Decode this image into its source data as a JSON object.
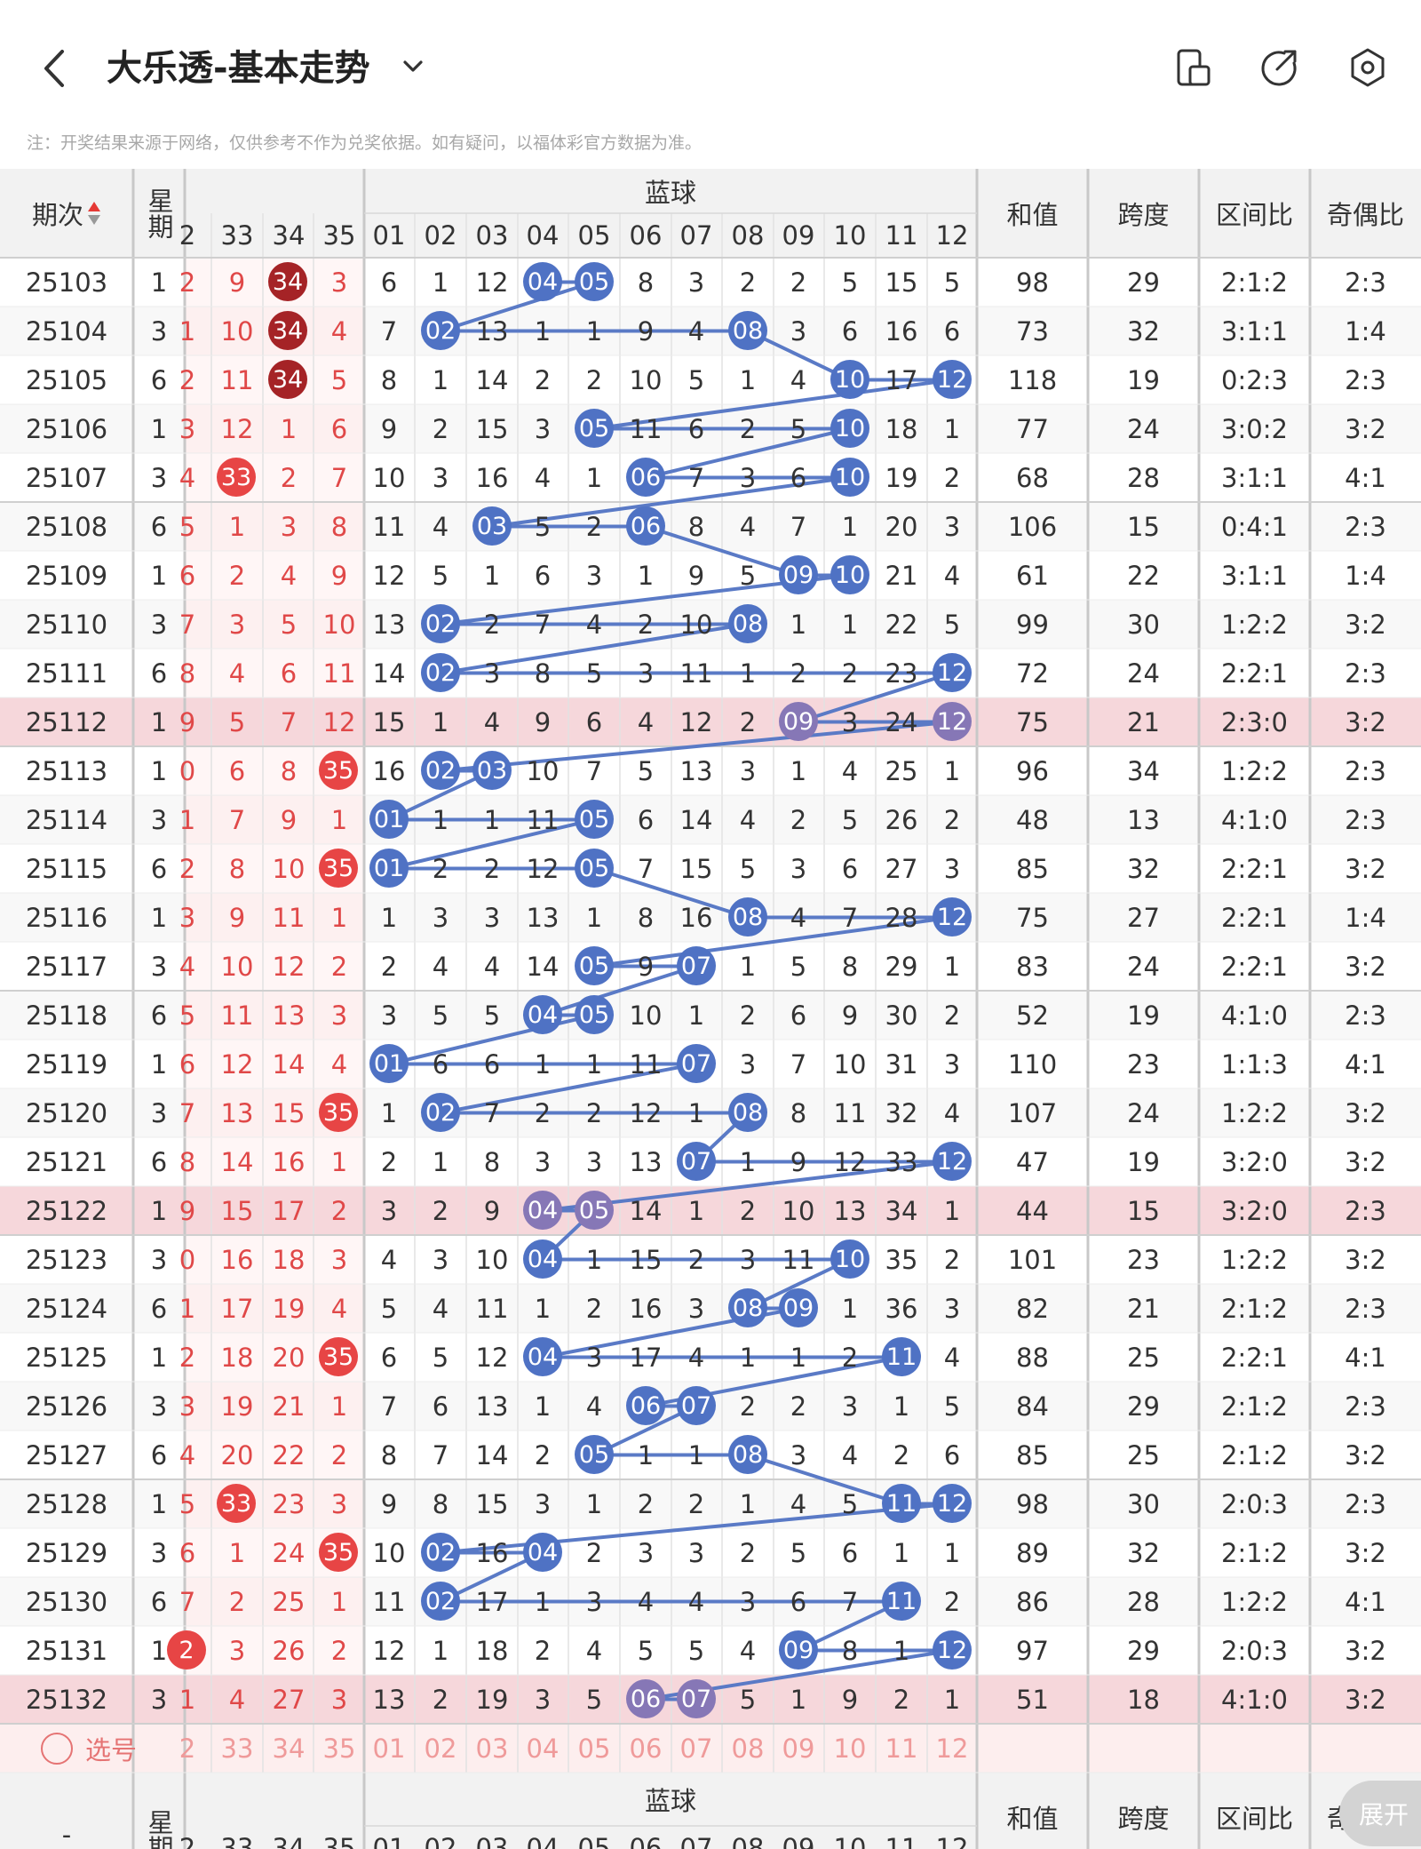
{
  "header": {
    "title": "大乐透-基本走势"
  },
  "icons": {
    "back": "back-icon",
    "dropdown": "chevron-down-icon",
    "layout": "layout-icon",
    "share": "share-icon",
    "settings": "settings-icon"
  },
  "notice": "注：开奖结果来源于网络，仅供参考不作为兑奖依据。如有疑问，以福体彩官方数据为准。",
  "table": {
    "col_period": "期次",
    "col_week": "星期",
    "blue_group": "蓝球",
    "col_sum": "和值",
    "col_span": "跨度",
    "col_zone": "区间比",
    "col_oddeven": "奇偶比",
    "front_headers": [
      "2",
      "33",
      "34",
      "35"
    ],
    "blue_headers": [
      "01",
      "02",
      "03",
      "04",
      "05",
      "06",
      "07",
      "08",
      "09",
      "10",
      "11",
      "12"
    ],
    "rows": [
      {
        "p": "25103",
        "w": "1",
        "f": [
          "2",
          "9",
          "34",
          "3"
        ],
        "fs": [
          0,
          0,
          2,
          0
        ],
        "b": [
          "6",
          "1",
          "12",
          "04",
          "05",
          "8",
          "3",
          "2",
          "2",
          "5",
          "15",
          "5"
        ],
        "hit": [
          3,
          4
        ],
        "sum": "98",
        "span": "29",
        "zone": "2:1:2",
        "oe": "2:3",
        "hl": false
      },
      {
        "p": "25104",
        "w": "3",
        "f": [
          "1",
          "10",
          "34",
          "4"
        ],
        "fs": [
          0,
          0,
          2,
          0
        ],
        "b": [
          "7",
          "02",
          "13",
          "1",
          "1",
          "9",
          "4",
          "08",
          "3",
          "6",
          "16",
          "6"
        ],
        "hit": [
          1,
          7
        ],
        "sum": "73",
        "span": "32",
        "zone": "3:1:1",
        "oe": "1:4",
        "hl": false
      },
      {
        "p": "25105",
        "w": "6",
        "f": [
          "2",
          "11",
          "34",
          "5"
        ],
        "fs": [
          0,
          0,
          2,
          0
        ],
        "b": [
          "8",
          "1",
          "14",
          "2",
          "2",
          "10",
          "5",
          "1",
          "4",
          "10",
          "17",
          "12"
        ],
        "hit": [
          9,
          11
        ],
        "sum": "118",
        "span": "19",
        "zone": "0:2:3",
        "oe": "2:3",
        "hl": false
      },
      {
        "p": "25106",
        "w": "1",
        "f": [
          "3",
          "12",
          "1",
          "6"
        ],
        "fs": [
          0,
          0,
          0,
          0
        ],
        "b": [
          "9",
          "2",
          "15",
          "3",
          "05",
          "11",
          "6",
          "2",
          "5",
          "10",
          "18",
          "1"
        ],
        "hit": [
          4,
          9
        ],
        "sum": "77",
        "span": "24",
        "zone": "3:0:2",
        "oe": "3:2",
        "hl": false
      },
      {
        "p": "25107",
        "w": "3",
        "f": [
          "4",
          "33",
          "2",
          "7"
        ],
        "fs": [
          0,
          1,
          0,
          0
        ],
        "b": [
          "10",
          "3",
          "16",
          "4",
          "1",
          "06",
          "7",
          "3",
          "6",
          "10",
          "19",
          "2"
        ],
        "hit": [
          5,
          9
        ],
        "sum": "68",
        "span": "28",
        "zone": "3:1:1",
        "oe": "4:1",
        "hl": false
      },
      {
        "p": "25108",
        "w": "6",
        "f": [
          "5",
          "1",
          "3",
          "8"
        ],
        "fs": [
          0,
          0,
          0,
          0
        ],
        "b": [
          "11",
          "4",
          "03",
          "5",
          "2",
          "06",
          "8",
          "4",
          "7",
          "1",
          "20",
          "3"
        ],
        "hit": [
          2,
          5
        ],
        "sum": "106",
        "span": "15",
        "zone": "0:4:1",
        "oe": "2:3",
        "hl": false
      },
      {
        "p": "25109",
        "w": "1",
        "f": [
          "6",
          "2",
          "4",
          "9"
        ],
        "fs": [
          0,
          0,
          0,
          0
        ],
        "b": [
          "12",
          "5",
          "1",
          "6",
          "3",
          "1",
          "9",
          "5",
          "09",
          "10",
          "21",
          "4"
        ],
        "hit": [
          8,
          9
        ],
        "sum": "61",
        "span": "22",
        "zone": "3:1:1",
        "oe": "1:4",
        "hl": false
      },
      {
        "p": "25110",
        "w": "3",
        "f": [
          "7",
          "3",
          "5",
          "10"
        ],
        "fs": [
          0,
          0,
          0,
          0
        ],
        "b": [
          "13",
          "02",
          "2",
          "7",
          "4",
          "2",
          "10",
          "08",
          "1",
          "1",
          "22",
          "5"
        ],
        "hit": [
          1,
          7
        ],
        "sum": "99",
        "span": "30",
        "zone": "1:2:2",
        "oe": "3:2",
        "hl": false
      },
      {
        "p": "25111",
        "w": "6",
        "f": [
          "8",
          "4",
          "6",
          "11"
        ],
        "fs": [
          0,
          0,
          0,
          0
        ],
        "b": [
          "14",
          "02",
          "3",
          "8",
          "5",
          "3",
          "11",
          "1",
          "2",
          "2",
          "23",
          "12"
        ],
        "hit": [
          1,
          11
        ],
        "sum": "72",
        "span": "24",
        "zone": "2:2:1",
        "oe": "2:3",
        "hl": false
      },
      {
        "p": "25112",
        "w": "1",
        "f": [
          "9",
          "5",
          "7",
          "12"
        ],
        "fs": [
          0,
          0,
          0,
          0
        ],
        "b": [
          "15",
          "1",
          "4",
          "9",
          "6",
          "4",
          "12",
          "2",
          "09",
          "3",
          "24",
          "12"
        ],
        "hit": [
          8,
          11
        ],
        "sum": "75",
        "span": "21",
        "zone": "2:3:0",
        "oe": "3:2",
        "hl": true
      },
      {
        "p": "25113",
        "w": "1",
        "f": [
          "0",
          "6",
          "8",
          "35"
        ],
        "fs": [
          0,
          0,
          0,
          1
        ],
        "b": [
          "16",
          "02",
          "03",
          "10",
          "7",
          "5",
          "13",
          "3",
          "1",
          "4",
          "25",
          "1"
        ],
        "hit": [
          1,
          2
        ],
        "sum": "96",
        "span": "34",
        "zone": "1:2:2",
        "oe": "2:3",
        "hl": false
      },
      {
        "p": "25114",
        "w": "3",
        "f": [
          "1",
          "7",
          "9",
          "1"
        ],
        "fs": [
          0,
          0,
          0,
          0
        ],
        "b": [
          "01",
          "1",
          "1",
          "11",
          "05",
          "6",
          "14",
          "4",
          "2",
          "5",
          "26",
          "2"
        ],
        "hit": [
          0,
          4
        ],
        "sum": "48",
        "span": "13",
        "zone": "4:1:0",
        "oe": "2:3",
        "hl": false
      },
      {
        "p": "25115",
        "w": "6",
        "f": [
          "2",
          "8",
          "10",
          "35"
        ],
        "fs": [
          0,
          0,
          0,
          1
        ],
        "b": [
          "01",
          "2",
          "2",
          "12",
          "05",
          "7",
          "15",
          "5",
          "3",
          "6",
          "27",
          "3"
        ],
        "hit": [
          0,
          4
        ],
        "sum": "85",
        "span": "32",
        "zone": "2:2:1",
        "oe": "3:2",
        "hl": false
      },
      {
        "p": "25116",
        "w": "1",
        "f": [
          "3",
          "9",
          "11",
          "1"
        ],
        "fs": [
          0,
          0,
          0,
          0
        ],
        "b": [
          "1",
          "3",
          "3",
          "13",
          "1",
          "8",
          "16",
          "08",
          "4",
          "7",
          "28",
          "12"
        ],
        "hit": [
          7,
          11
        ],
        "sum": "75",
        "span": "27",
        "zone": "2:2:1",
        "oe": "1:4",
        "hl": false
      },
      {
        "p": "25117",
        "w": "3",
        "f": [
          "4",
          "10",
          "12",
          "2"
        ],
        "fs": [
          0,
          0,
          0,
          0
        ],
        "b": [
          "2",
          "4",
          "4",
          "14",
          "05",
          "9",
          "07",
          "1",
          "5",
          "8",
          "29",
          "1"
        ],
        "hit": [
          4,
          6
        ],
        "sum": "83",
        "span": "24",
        "zone": "2:2:1",
        "oe": "3:2",
        "hl": false
      },
      {
        "p": "25118",
        "w": "6",
        "f": [
          "5",
          "11",
          "13",
          "3"
        ],
        "fs": [
          0,
          0,
          0,
          0
        ],
        "b": [
          "3",
          "5",
          "5",
          "04",
          "05",
          "10",
          "1",
          "2",
          "6",
          "9",
          "30",
          "2"
        ],
        "hit": [
          3,
          4
        ],
        "sum": "52",
        "span": "19",
        "zone": "4:1:0",
        "oe": "2:3",
        "hl": false
      },
      {
        "p": "25119",
        "w": "1",
        "f": [
          "6",
          "12",
          "14",
          "4"
        ],
        "fs": [
          0,
          0,
          0,
          0
        ],
        "b": [
          "01",
          "6",
          "6",
          "1",
          "1",
          "11",
          "07",
          "3",
          "7",
          "10",
          "31",
          "3"
        ],
        "hit": [
          0,
          6
        ],
        "sum": "110",
        "span": "23",
        "zone": "1:1:3",
        "oe": "4:1",
        "hl": false
      },
      {
        "p": "25120",
        "w": "3",
        "f": [
          "7",
          "13",
          "15",
          "35"
        ],
        "fs": [
          0,
          0,
          0,
          1
        ],
        "b": [
          "1",
          "02",
          "7",
          "2",
          "2",
          "12",
          "1",
          "08",
          "8",
          "11",
          "32",
          "4"
        ],
        "hit": [
          1,
          7
        ],
        "sum": "107",
        "span": "24",
        "zone": "1:2:2",
        "oe": "3:2",
        "hl": false
      },
      {
        "p": "25121",
        "w": "6",
        "f": [
          "8",
          "14",
          "16",
          "1"
        ],
        "fs": [
          0,
          0,
          0,
          0
        ],
        "b": [
          "2",
          "1",
          "8",
          "3",
          "3",
          "13",
          "07",
          "1",
          "9",
          "12",
          "33",
          "12"
        ],
        "hit": [
          6,
          11
        ],
        "sum": "47",
        "span": "19",
        "zone": "3:2:0",
        "oe": "3:2",
        "hl": false
      },
      {
        "p": "25122",
        "w": "1",
        "f": [
          "9",
          "15",
          "17",
          "2"
        ],
        "fs": [
          0,
          0,
          0,
          0
        ],
        "b": [
          "3",
          "2",
          "9",
          "04",
          "05",
          "14",
          "1",
          "2",
          "10",
          "13",
          "34",
          "1"
        ],
        "hit": [
          3,
          4
        ],
        "sum": "44",
        "span": "15",
        "zone": "3:2:0",
        "oe": "2:3",
        "hl": true
      },
      {
        "p": "25123",
        "w": "3",
        "f": [
          "0",
          "16",
          "18",
          "3"
        ],
        "fs": [
          0,
          0,
          0,
          0
        ],
        "b": [
          "4",
          "3",
          "10",
          "04",
          "1",
          "15",
          "2",
          "3",
          "11",
          "10",
          "35",
          "2"
        ],
        "hit": [
          3,
          9
        ],
        "sum": "101",
        "span": "23",
        "zone": "1:2:2",
        "oe": "3:2",
        "hl": false
      },
      {
        "p": "25124",
        "w": "6",
        "f": [
          "1",
          "17",
          "19",
          "4"
        ],
        "fs": [
          0,
          0,
          0,
          0
        ],
        "b": [
          "5",
          "4",
          "11",
          "1",
          "2",
          "16",
          "3",
          "08",
          "09",
          "1",
          "36",
          "3"
        ],
        "hit": [
          7,
          8
        ],
        "sum": "82",
        "span": "21",
        "zone": "2:1:2",
        "oe": "2:3",
        "hl": false
      },
      {
        "p": "25125",
        "w": "1",
        "f": [
          "2",
          "18",
          "20",
          "35"
        ],
        "fs": [
          0,
          0,
          0,
          1
        ],
        "b": [
          "6",
          "5",
          "12",
          "04",
          "3",
          "17",
          "4",
          "1",
          "1",
          "2",
          "11",
          "4"
        ],
        "hit": [
          3,
          10
        ],
        "sum": "88",
        "span": "25",
        "zone": "2:2:1",
        "oe": "4:1",
        "hl": false
      },
      {
        "p": "25126",
        "w": "3",
        "f": [
          "3",
          "19",
          "21",
          "1"
        ],
        "fs": [
          0,
          0,
          0,
          0
        ],
        "b": [
          "7",
          "6",
          "13",
          "1",
          "4",
          "06",
          "07",
          "2",
          "2",
          "3",
          "1",
          "5"
        ],
        "hit": [
          5,
          6
        ],
        "sum": "84",
        "span": "29",
        "zone": "2:1:2",
        "oe": "2:3",
        "hl": false
      },
      {
        "p": "25127",
        "w": "6",
        "f": [
          "4",
          "20",
          "22",
          "2"
        ],
        "fs": [
          0,
          0,
          0,
          0
        ],
        "b": [
          "8",
          "7",
          "14",
          "2",
          "05",
          "1",
          "1",
          "08",
          "3",
          "4",
          "2",
          "6"
        ],
        "hit": [
          4,
          7
        ],
        "sum": "85",
        "span": "25",
        "zone": "2:1:2",
        "oe": "3:2",
        "hl": false
      },
      {
        "p": "25128",
        "w": "1",
        "f": [
          "5",
          "33",
          "23",
          "3"
        ],
        "fs": [
          0,
          1,
          0,
          0
        ],
        "b": [
          "9",
          "8",
          "15",
          "3",
          "1",
          "2",
          "2",
          "1",
          "4",
          "5",
          "11",
          "12"
        ],
        "hit": [
          10,
          11
        ],
        "sum": "98",
        "span": "30",
        "zone": "2:0:3",
        "oe": "2:3",
        "hl": false
      },
      {
        "p": "25129",
        "w": "3",
        "f": [
          "6",
          "1",
          "24",
          "35"
        ],
        "fs": [
          0,
          0,
          0,
          1
        ],
        "b": [
          "10",
          "02",
          "16",
          "04",
          "2",
          "3",
          "3",
          "2",
          "5",
          "6",
          "1",
          "1"
        ],
        "hit": [
          1,
          3
        ],
        "sum": "89",
        "span": "32",
        "zone": "2:1:2",
        "oe": "3:2",
        "hl": false
      },
      {
        "p": "25130",
        "w": "6",
        "f": [
          "7",
          "2",
          "25",
          "1"
        ],
        "fs": [
          0,
          0,
          0,
          0
        ],
        "b": [
          "11",
          "02",
          "17",
          "1",
          "3",
          "4",
          "4",
          "3",
          "6",
          "7",
          "11",
          "2"
        ],
        "hit": [
          1,
          10
        ],
        "sum": "86",
        "span": "28",
        "zone": "1:2:2",
        "oe": "4:1",
        "hl": false
      },
      {
        "p": "25131",
        "w": "1",
        "f": [
          "2",
          "3",
          "26",
          "2"
        ],
        "fs": [
          1,
          0,
          0,
          0
        ],
        "b": [
          "12",
          "1",
          "18",
          "2",
          "4",
          "5",
          "5",
          "4",
          "09",
          "8",
          "1",
          "12"
        ],
        "hit": [
          8,
          11
        ],
        "sum": "97",
        "span": "29",
        "zone": "2:0:3",
        "oe": "3:2",
        "hl": false
      },
      {
        "p": "25132",
        "w": "3",
        "f": [
          "1",
          "4",
          "27",
          "3"
        ],
        "fs": [
          0,
          0,
          0,
          0
        ],
        "b": [
          "13",
          "2",
          "19",
          "3",
          "5",
          "06",
          "07",
          "5",
          "1",
          "9",
          "2",
          "1"
        ],
        "hit": [
          5,
          6
        ],
        "sum": "51",
        "span": "18",
        "zone": "4:1:0",
        "oe": "3:2",
        "hl": true
      }
    ],
    "select_label": "选号",
    "select_front": [
      "2",
      "33",
      "34",
      "35"
    ],
    "select_blue": [
      "01",
      "02",
      "03",
      "04",
      "05",
      "06",
      "07",
      "08",
      "09",
      "10",
      "11",
      "12"
    ],
    "footer_period": "-",
    "footer_week": "星期"
  },
  "expand_label": "展开"
}
